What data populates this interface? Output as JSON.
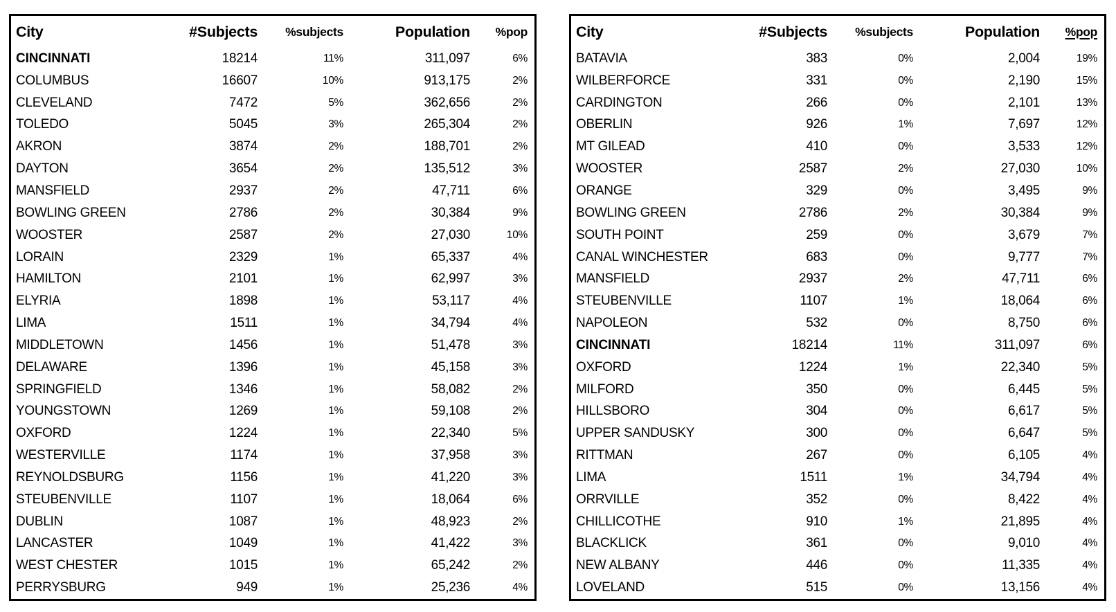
{
  "page": {
    "background": "#ffffff",
    "text_color": "#000000",
    "table_border_color": "#000000"
  },
  "chart_data": [
    {
      "type": "table",
      "name": "cities-by-subjects",
      "columns": [
        "City",
        "#Subjects",
        "%subjects",
        "Population",
        "%pop"
      ],
      "underlined_column": null,
      "bold_row": "CINCINNATI",
      "rows": [
        [
          "CINCINNATI",
          "18214",
          "11%",
          "311,097",
          "6%"
        ],
        [
          "COLUMBUS",
          "16607",
          "10%",
          "913,175",
          "2%"
        ],
        [
          "CLEVELAND",
          "7472",
          "5%",
          "362,656",
          "2%"
        ],
        [
          "TOLEDO",
          "5045",
          "3%",
          "265,304",
          "2%"
        ],
        [
          "AKRON",
          "3874",
          "2%",
          "188,701",
          "2%"
        ],
        [
          "DAYTON",
          "3654",
          "2%",
          "135,512",
          "3%"
        ],
        [
          "MANSFIELD",
          "2937",
          "2%",
          "47,711",
          "6%"
        ],
        [
          "BOWLING GREEN",
          "2786",
          "2%",
          "30,384",
          "9%"
        ],
        [
          "WOOSTER",
          "2587",
          "2%",
          "27,030",
          "10%"
        ],
        [
          "LORAIN",
          "2329",
          "1%",
          "65,337",
          "4%"
        ],
        [
          "HAMILTON",
          "2101",
          "1%",
          "62,997",
          "3%"
        ],
        [
          "ELYRIA",
          "1898",
          "1%",
          "53,117",
          "4%"
        ],
        [
          "LIMA",
          "1511",
          "1%",
          "34,794",
          "4%"
        ],
        [
          "MIDDLETOWN",
          "1456",
          "1%",
          "51,478",
          "3%"
        ],
        [
          "DELAWARE",
          "1396",
          "1%",
          "45,158",
          "3%"
        ],
        [
          "SPRINGFIELD",
          "1346",
          "1%",
          "58,082",
          "2%"
        ],
        [
          "YOUNGSTOWN",
          "1269",
          "1%",
          "59,108",
          "2%"
        ],
        [
          "OXFORD",
          "1224",
          "1%",
          "22,340",
          "5%"
        ],
        [
          "WESTERVILLE",
          "1174",
          "1%",
          "37,958",
          "3%"
        ],
        [
          "REYNOLDSBURG",
          "1156",
          "1%",
          "41,220",
          "3%"
        ],
        [
          "STEUBENVILLE",
          "1107",
          "1%",
          "18,064",
          "6%"
        ],
        [
          "DUBLIN",
          "1087",
          "1%",
          "48,923",
          "2%"
        ],
        [
          "LANCASTER",
          "1049",
          "1%",
          "41,422",
          "3%"
        ],
        [
          "WEST CHESTER",
          "1015",
          "1%",
          "65,242",
          "2%"
        ],
        [
          "PERRYSBURG",
          "949",
          "1%",
          "25,236",
          "4%"
        ]
      ]
    },
    {
      "type": "table",
      "name": "cities-by-pct-pop",
      "columns": [
        "City",
        "#Subjects",
        "%subjects",
        "Population",
        "%pop"
      ],
      "underlined_column": "%pop",
      "bold_row": "CINCINNATI",
      "rows": [
        [
          "BATAVIA",
          "383",
          "0%",
          "2,004",
          "19%"
        ],
        [
          "WILBERFORCE",
          "331",
          "0%",
          "2,190",
          "15%"
        ],
        [
          "CARDINGTON",
          "266",
          "0%",
          "2,101",
          "13%"
        ],
        [
          "OBERLIN",
          "926",
          "1%",
          "7,697",
          "12%"
        ],
        [
          "MT GILEAD",
          "410",
          "0%",
          "3,533",
          "12%"
        ],
        [
          "WOOSTER",
          "2587",
          "2%",
          "27,030",
          "10%"
        ],
        [
          "ORANGE",
          "329",
          "0%",
          "3,495",
          "9%"
        ],
        [
          "BOWLING GREEN",
          "2786",
          "2%",
          "30,384",
          "9%"
        ],
        [
          "SOUTH POINT",
          "259",
          "0%",
          "3,679",
          "7%"
        ],
        [
          "CANAL WINCHESTER",
          "683",
          "0%",
          "9,777",
          "7%"
        ],
        [
          "MANSFIELD",
          "2937",
          "2%",
          "47,711",
          "6%"
        ],
        [
          "STEUBENVILLE",
          "1107",
          "1%",
          "18,064",
          "6%"
        ],
        [
          "NAPOLEON",
          "532",
          "0%",
          "8,750",
          "6%"
        ],
        [
          "CINCINNATI",
          "18214",
          "11%",
          "311,097",
          "6%"
        ],
        [
          "OXFORD",
          "1224",
          "1%",
          "22,340",
          "5%"
        ],
        [
          "MILFORD",
          "350",
          "0%",
          "6,445",
          "5%"
        ],
        [
          "HILLSBORO",
          "304",
          "0%",
          "6,617",
          "5%"
        ],
        [
          "UPPER SANDUSKY",
          "300",
          "0%",
          "6,647",
          "5%"
        ],
        [
          "RITTMAN",
          "267",
          "0%",
          "6,105",
          "4%"
        ],
        [
          "LIMA",
          "1511",
          "1%",
          "34,794",
          "4%"
        ],
        [
          "ORRVILLE",
          "352",
          "0%",
          "8,422",
          "4%"
        ],
        [
          "CHILLICOTHE",
          "910",
          "1%",
          "21,895",
          "4%"
        ],
        [
          "BLACKLICK",
          "361",
          "0%",
          "9,010",
          "4%"
        ],
        [
          "NEW ALBANY",
          "446",
          "0%",
          "11,335",
          "4%"
        ],
        [
          "LOVELAND",
          "515",
          "0%",
          "13,156",
          "4%"
        ]
      ]
    }
  ]
}
